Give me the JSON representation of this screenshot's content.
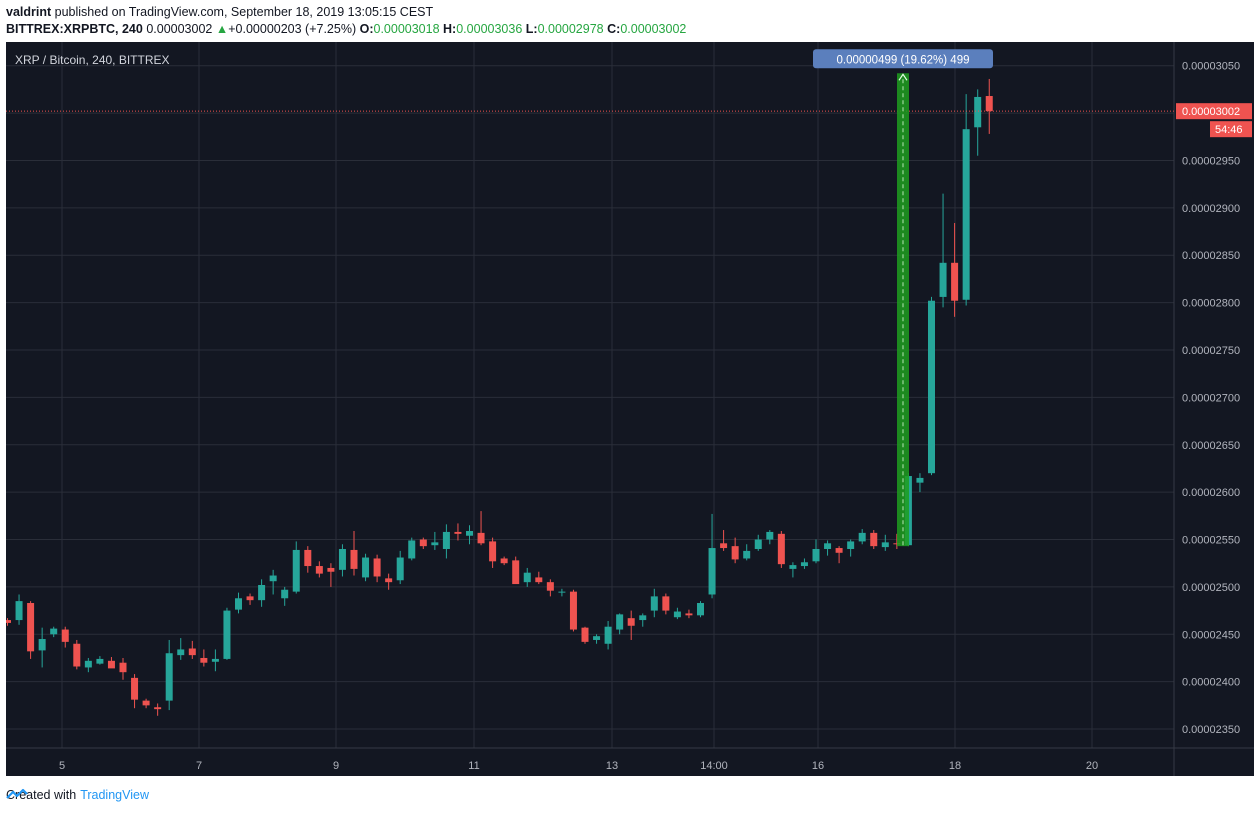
{
  "header": {
    "author": "valdrint",
    "published": "published on TradingView.com, September 18, 2019 13:05:15 CEST",
    "symbol": "BITTREX:XRPBTC, 240",
    "last": "0.00003002",
    "change": "+0.00000203 (+7.25%)",
    "o_label": "O:",
    "o": "0.00003018",
    "h_label": "H:",
    "h": "0.00003036",
    "l_label": "L:",
    "l": "0.00002978",
    "c_label": "C:",
    "c": "0.00003002"
  },
  "colors": {
    "background": "#131722",
    "grid": "#2a2e39",
    "up": "#26a69a",
    "down": "#ef5350",
    "measure": "#1e9e1e",
    "measure_label": "#5b7fbd",
    "price_line": "#ef5350"
  },
  "chart_data": {
    "type": "candlestick",
    "title": "XRP / Bitcoin, 240, BITTREX",
    "ylim": [
      2.33e-05,
      3.075e-05
    ],
    "yticks": [
      "0.00002350",
      "0.00002400",
      "0.00002450",
      "0.00002500",
      "0.00002550",
      "0.00002600",
      "0.00002650",
      "0.00002700",
      "0.00002750",
      "0.00002800",
      "0.00002850",
      "0.00002900",
      "0.00002950",
      "0.00003000",
      "0.00003050"
    ],
    "xticks": [
      "5",
      "7",
      "9",
      "11",
      "13",
      "14:00",
      "16",
      "18",
      "20"
    ],
    "current_price": "0.00003002",
    "countdown": "54:46",
    "measure": {
      "label": "0.00000499 (19.62%) 499",
      "from": 2.543e-05,
      "to": 3.042e-05
    },
    "candles_ohlc": [
      [
        2.465e-05,
        2.467e-05,
        2.459e-05,
        2.462e-05
      ],
      [
        2.465e-05,
        2.492e-05,
        2.46e-05,
        2.485e-05
      ],
      [
        2.483e-05,
        2.485e-05,
        2.424e-05,
        2.432e-05
      ],
      [
        2.433e-05,
        2.457e-05,
        2.415e-05,
        2.445e-05
      ],
      [
        2.45e-05,
        2.458e-05,
        2.447e-05,
        2.456e-05
      ],
      [
        2.455e-05,
        2.458e-05,
        2.436e-05,
        2.442e-05
      ],
      [
        2.44e-05,
        2.444e-05,
        2.413e-05,
        2.416e-05
      ],
      [
        2.415e-05,
        2.425e-05,
        2.41e-05,
        2.422e-05
      ],
      [
        2.419e-05,
        2.427e-05,
        2.418e-05,
        2.424e-05
      ],
      [
        2.422e-05,
        2.426e-05,
        2.418e-05,
        2.414e-05
      ],
      [
        2.42e-05,
        2.425e-05,
        2.402e-05,
        2.41e-05
      ],
      [
        2.404e-05,
        2.408e-05,
        2.372e-05,
        2.381e-05
      ],
      [
        2.38e-05,
        2.382e-05,
        2.372e-05,
        2.375e-05
      ],
      [
        2.373e-05,
        2.377e-05,
        2.364e-05,
        2.371e-05
      ],
      [
        2.38e-05,
        2.444e-05,
        2.37e-05,
        2.43e-05
      ],
      [
        2.428e-05,
        2.446e-05,
        2.423e-05,
        2.434e-05
      ],
      [
        2.435e-05,
        2.443e-05,
        2.424e-05,
        2.428e-05
      ],
      [
        2.425e-05,
        2.434e-05,
        2.416e-05,
        2.42e-05
      ],
      [
        2.421e-05,
        2.434e-05,
        2.411e-05,
        2.424e-05
      ],
      [
        2.424e-05,
        2.478e-05,
        2.423e-05,
        2.475e-05
      ],
      [
        2.476e-05,
        2.494e-05,
        2.472e-05,
        2.488e-05
      ],
      [
        2.49e-05,
        2.493e-05,
        2.481e-05,
        2.486e-05
      ],
      [
        2.486e-05,
        2.508e-05,
        2.479e-05,
        2.502e-05
      ],
      [
        2.506e-05,
        2.518e-05,
        2.492e-05,
        2.512e-05
      ],
      [
        2.488e-05,
        2.5e-05,
        2.48e-05,
        2.497e-05
      ],
      [
        2.495e-05,
        2.548e-05,
        2.493e-05,
        2.539e-05
      ],
      [
        2.539e-05,
        2.543e-05,
        2.515e-05,
        2.522e-05
      ],
      [
        2.522e-05,
        2.527e-05,
        2.51e-05,
        2.514e-05
      ],
      [
        2.52e-05,
        2.525e-05,
        2.5e-05,
        2.516e-05
      ],
      [
        2.518e-05,
        2.545e-05,
        2.511e-05,
        2.54e-05
      ],
      [
        2.539e-05,
        2.559e-05,
        2.512e-05,
        2.519e-05
      ],
      [
        2.51e-05,
        2.535e-05,
        2.506e-05,
        2.531e-05
      ],
      [
        2.53e-05,
        2.534e-05,
        2.505e-05,
        2.511e-05
      ],
      [
        2.509e-05,
        2.514e-05,
        2.497e-05,
        2.505e-05
      ],
      [
        2.507e-05,
        2.538e-05,
        2.503e-05,
        2.531e-05
      ],
      [
        2.53e-05,
        2.552e-05,
        2.528e-05,
        2.549e-05
      ],
      [
        2.55e-05,
        2.552e-05,
        2.54e-05,
        2.543e-05
      ],
      [
        2.544e-05,
        2.558e-05,
        2.539e-05,
        2.547e-05
      ],
      [
        2.54e-05,
        2.566e-05,
        2.53e-05,
        2.558e-05
      ],
      [
        2.558e-05,
        2.567e-05,
        2.549e-05,
        2.556e-05
      ],
      [
        2.554e-05,
        2.565e-05,
        2.545e-05,
        2.559e-05
      ],
      [
        2.557e-05,
        2.58e-05,
        2.544e-05,
        2.546e-05
      ],
      [
        2.548e-05,
        2.552e-05,
        2.52e-05,
        2.527e-05
      ],
      [
        2.53e-05,
        2.532e-05,
        2.523e-05,
        2.525e-05
      ],
      [
        2.528e-05,
        2.532e-05,
        2.515e-05,
        2.503e-05
      ],
      [
        2.505e-05,
        2.52e-05,
        2.5e-05,
        2.515e-05
      ],
      [
        2.51e-05,
        2.516e-05,
        2.503e-05,
        2.505e-05
      ],
      [
        2.505e-05,
        2.508e-05,
        2.49e-05,
        2.496e-05
      ],
      [
        2.495e-05,
        2.498e-05,
        2.49e-05,
        2.495e-05
      ],
      [
        2.495e-05,
        2.497e-05,
        2.453e-05,
        2.455e-05
      ],
      [
        2.457e-05,
        2.458e-05,
        2.44e-05,
        2.442e-05
      ],
      [
        2.444e-05,
        2.45e-05,
        2.44e-05,
        2.448e-05
      ],
      [
        2.44e-05,
        2.464e-05,
        2.434e-05,
        2.458e-05
      ],
      [
        2.455e-05,
        2.472e-05,
        2.45e-05,
        2.471e-05
      ],
      [
        2.467e-05,
        2.475e-05,
        2.444e-05,
        2.459e-05
      ],
      [
        2.465e-05,
        2.472e-05,
        2.458e-05,
        2.47e-05
      ],
      [
        2.475e-05,
        2.498e-05,
        2.468e-05,
        2.49e-05
      ],
      [
        2.49e-05,
        2.493e-05,
        2.471e-05,
        2.475e-05
      ],
      [
        2.468e-05,
        2.478e-05,
        2.466e-05,
        2.474e-05
      ],
      [
        2.472e-05,
        2.476e-05,
        2.467e-05,
        2.47e-05
      ],
      [
        2.47e-05,
        2.485e-05,
        2.468e-05,
        2.483e-05
      ],
      [
        2.492e-05,
        2.577e-05,
        2.488e-05,
        2.541e-05
      ],
      [
        2.546e-05,
        2.56e-05,
        2.538e-05,
        2.541e-05
      ],
      [
        2.543e-05,
        2.552e-05,
        2.525e-05,
        2.529e-05
      ],
      [
        2.53e-05,
        2.545e-05,
        2.528e-05,
        2.538e-05
      ],
      [
        2.54e-05,
        2.555e-05,
        2.538e-05,
        2.55e-05
      ],
      [
        2.55e-05,
        2.56e-05,
        2.545e-05,
        2.558e-05
      ],
      [
        2.556e-05,
        2.559e-05,
        2.52e-05,
        2.524e-05
      ],
      [
        2.519e-05,
        2.526e-05,
        2.51e-05,
        2.523e-05
      ],
      [
        2.522e-05,
        2.53e-05,
        2.519e-05,
        2.526e-05
      ],
      [
        2.527e-05,
        2.55e-05,
        2.525e-05,
        2.54e-05
      ],
      [
        2.54e-05,
        2.549e-05,
        2.533e-05,
        2.546e-05
      ],
      [
        2.541e-05,
        2.543e-05,
        2.525e-05,
        2.536e-05
      ],
      [
        2.54e-05,
        2.55e-05,
        2.532e-05,
        2.548e-05
      ],
      [
        2.548e-05,
        2.561e-05,
        2.545e-05,
        2.557e-05
      ],
      [
        2.557e-05,
        2.56e-05,
        2.54e-05,
        2.543e-05
      ],
      [
        2.542e-05,
        2.555e-05,
        2.538e-05,
        2.547e-05
      ],
      [
        2.546e-05,
        2.556e-05,
        2.54e-05,
        2.545e-05
      ],
      [
        2.544e-05,
        2.62e-05,
        2.543e-05,
        2.617e-05
      ],
      [
        2.61e-05,
        2.62e-05,
        2.6e-05,
        2.615e-05
      ],
      [
        2.62e-05,
        2.806e-05,
        2.618e-05,
        2.802e-05
      ],
      [
        2.806e-05,
        2.915e-05,
        2.795e-05,
        2.842e-05
      ],
      [
        2.842e-05,
        2.884e-05,
        2.785e-05,
        2.802e-05
      ],
      [
        2.803e-05,
        3.02e-05,
        2.797e-05,
        2.983e-05
      ],
      [
        2.985e-05,
        3.025e-05,
        2.955e-05,
        3.017e-05
      ],
      [
        3.018e-05,
        3.036e-05,
        2.978e-05,
        3.002e-05
      ]
    ]
  },
  "footer": {
    "created_with": "Created with",
    "brand": "TradingView"
  }
}
